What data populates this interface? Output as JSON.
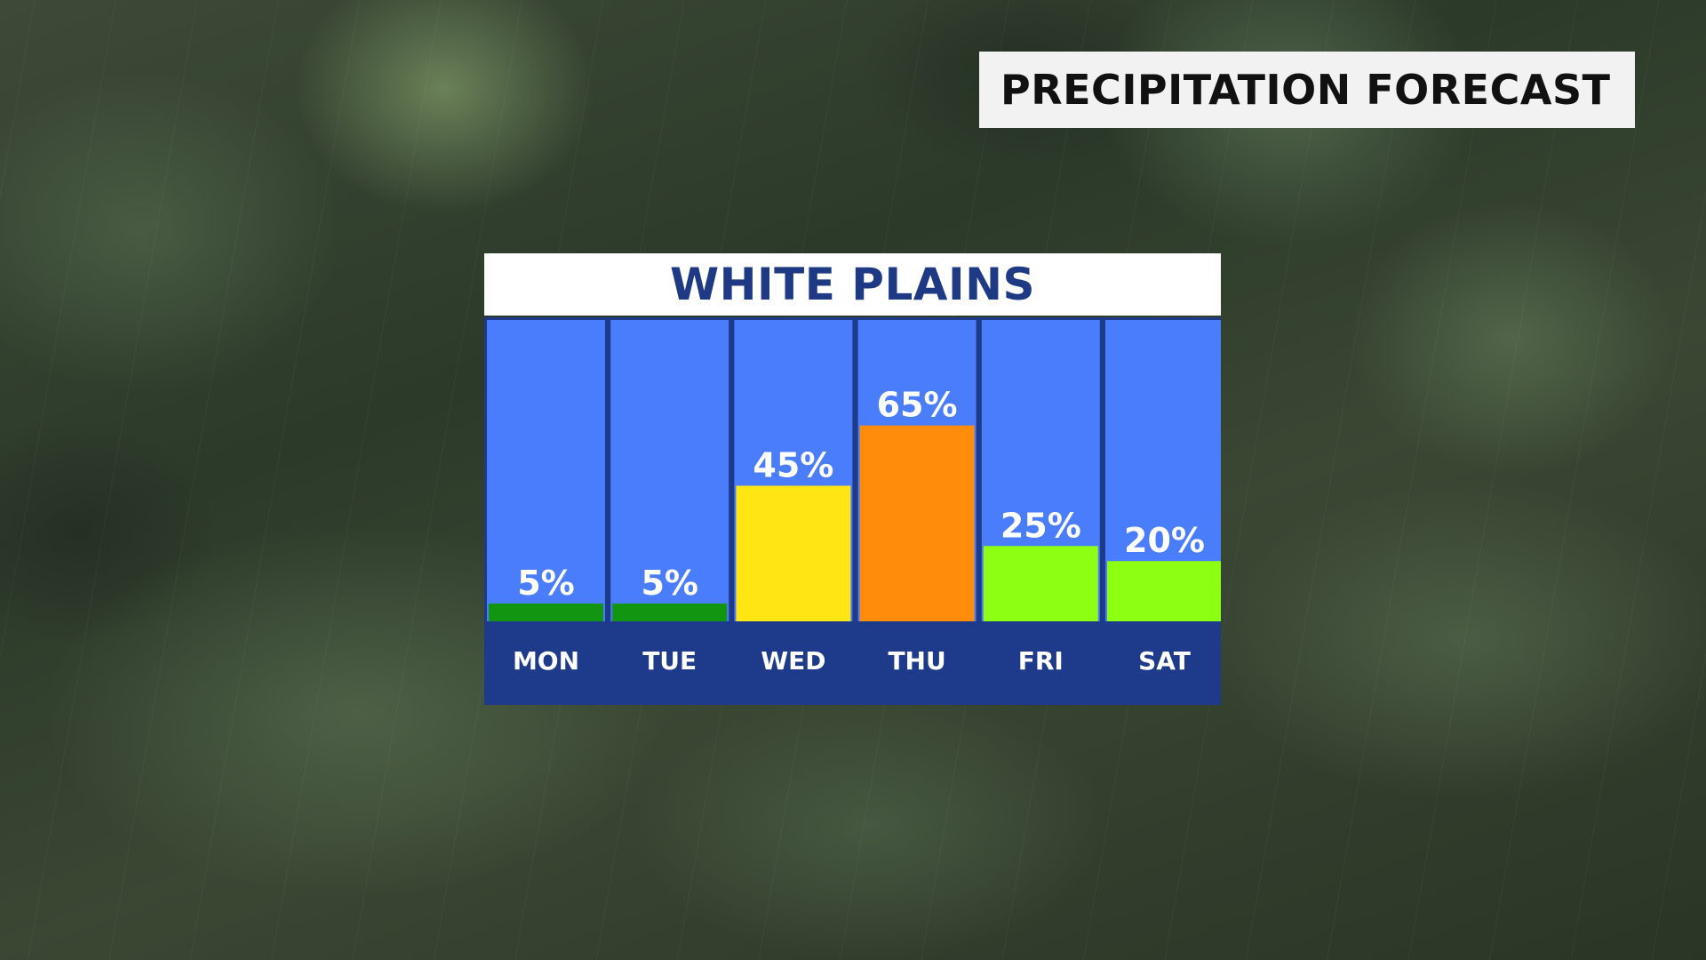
{
  "header": {
    "title": "PRECIPITATION FORECAST"
  },
  "chart_data": {
    "type": "bar",
    "title": "WHITE PLAINS",
    "categories": [
      "MON",
      "TUE",
      "WED",
      "THU",
      "FRI",
      "SAT"
    ],
    "values": [
      5,
      5,
      45,
      65,
      25,
      20
    ],
    "value_labels": [
      "5%",
      "5%",
      "45%",
      "65%",
      "25%",
      "20%"
    ],
    "bar_colors": [
      "#129612",
      "#129612",
      "#ffe514",
      "#ff8c0a",
      "#8cff12",
      "#8cff12"
    ],
    "ylim": [
      0,
      100
    ],
    "xlabel": "",
    "ylabel": "",
    "grid": false,
    "column_color": "#4a7dfc",
    "footer_color": "#1e3a8a"
  }
}
